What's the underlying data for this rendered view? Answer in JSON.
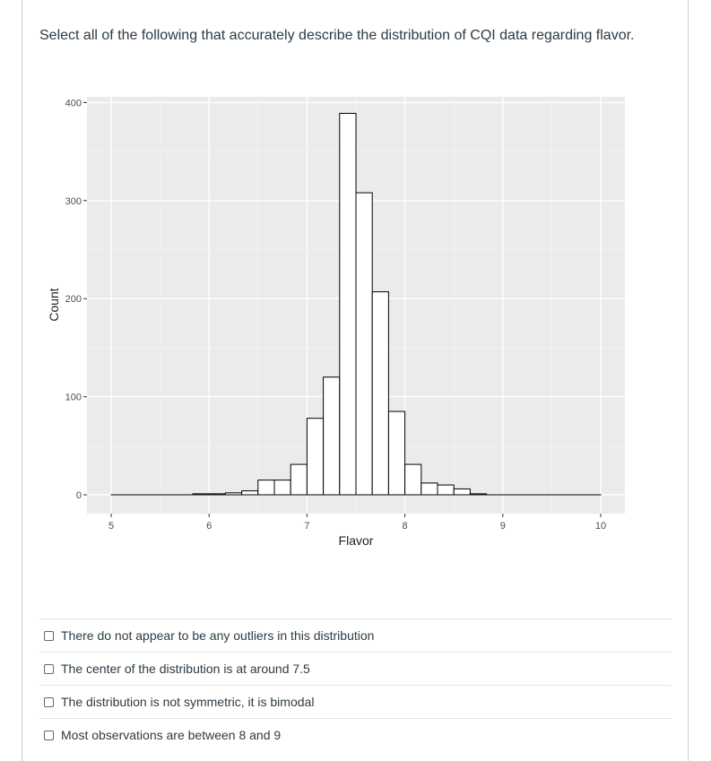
{
  "question": {
    "text": "Select all of the following that accurately describe the distribution of CQI data regarding flavor."
  },
  "chart_data": {
    "type": "bar",
    "xlabel": "Flavor",
    "ylabel": "Count",
    "xlim": [
      5,
      10
    ],
    "ylim": [
      0,
      400
    ],
    "x_ticks": [
      5,
      6,
      7,
      8,
      9,
      10
    ],
    "y_ticks": [
      0,
      100,
      200,
      300,
      400
    ],
    "bin_width": 0.1667,
    "bins": [
      {
        "x0": 5.0,
        "x1": 5.1667,
        "count": 0
      },
      {
        "x0": 5.1667,
        "x1": 5.3333,
        "count": 0
      },
      {
        "x0": 5.3333,
        "x1": 5.5,
        "count": 0
      },
      {
        "x0": 5.5,
        "x1": 5.6667,
        "count": 0
      },
      {
        "x0": 5.6667,
        "x1": 5.8333,
        "count": 0
      },
      {
        "x0": 5.8333,
        "x1": 6.0,
        "count": 1
      },
      {
        "x0": 6.0,
        "x1": 6.1667,
        "count": 1
      },
      {
        "x0": 6.1667,
        "x1": 6.3333,
        "count": 2
      },
      {
        "x0": 6.3333,
        "x1": 6.5,
        "count": 4
      },
      {
        "x0": 6.5,
        "x1": 6.6667,
        "count": 15
      },
      {
        "x0": 6.6667,
        "x1": 6.8333,
        "count": 15
      },
      {
        "x0": 6.8333,
        "x1": 7.0,
        "count": 31
      },
      {
        "x0": 7.0,
        "x1": 7.1667,
        "count": 78
      },
      {
        "x0": 7.1667,
        "x1": 7.3333,
        "count": 120
      },
      {
        "x0": 7.3333,
        "x1": 7.5,
        "count": 389
      },
      {
        "x0": 7.5,
        "x1": 7.6667,
        "count": 308
      },
      {
        "x0": 7.6667,
        "x1": 7.8333,
        "count": 207
      },
      {
        "x0": 7.8333,
        "x1": 8.0,
        "count": 85
      },
      {
        "x0": 8.0,
        "x1": 8.1667,
        "count": 31
      },
      {
        "x0": 8.1667,
        "x1": 8.3333,
        "count": 12
      },
      {
        "x0": 8.3333,
        "x1": 8.5,
        "count": 10
      },
      {
        "x0": 8.5,
        "x1": 8.6667,
        "count": 6
      },
      {
        "x0": 8.6667,
        "x1": 8.8333,
        "count": 1
      },
      {
        "x0": 8.8333,
        "x1": 9.0,
        "count": 0
      },
      {
        "x0": 9.0,
        "x1": 9.1667,
        "count": 0
      },
      {
        "x0": 9.1667,
        "x1": 9.3333,
        "count": 0
      },
      {
        "x0": 9.3333,
        "x1": 9.5,
        "count": 0
      },
      {
        "x0": 9.5,
        "x1": 9.6667,
        "count": 0
      },
      {
        "x0": 9.6667,
        "x1": 9.8333,
        "count": 0
      },
      {
        "x0": 9.8333,
        "x1": 10.0,
        "count": 0
      }
    ],
    "panel_color": "#ebebeb",
    "bar_fill": "#ffffff",
    "bar_stroke": "#000000",
    "grid": true
  },
  "answers": [
    {
      "label": "There do not appear to be any outliers in this distribution"
    },
    {
      "label": "The center of the distribution is at around 7.5"
    },
    {
      "label": "The distribution is not symmetric, it is bimodal"
    },
    {
      "label": "Most observations are between 8 and 9"
    }
  ]
}
